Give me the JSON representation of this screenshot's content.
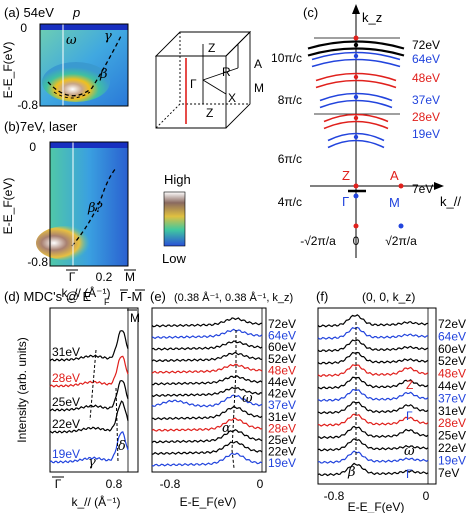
{
  "colors": {
    "red": "#e0201c",
    "blue": "#2244dd",
    "black": "#000000"
  },
  "panel_a": {
    "label": "(a) 54eV",
    "pol": "p",
    "yaxis": "E-E_F(eV)",
    "yticks": [
      "0",
      "-0.8"
    ],
    "labels": {
      "omega": "ω",
      "gamma": "γ",
      "beta": "β"
    }
  },
  "panel_b": {
    "label": "(b)7eV, laser",
    "yaxis": "E-E_F(eV)",
    "yticks": [
      "0",
      "-0.8"
    ],
    "xticks": [
      "Γ",
      "0.2",
      "M"
    ],
    "xlabel": "k_// (Å⁻¹)",
    "annotation": "β?"
  },
  "colorbar": {
    "high": "High",
    "low": "Low"
  },
  "bz": {
    "labels": [
      "Z",
      "Z",
      "R",
      "A",
      "Γ",
      "X",
      "M"
    ]
  },
  "panel_c": {
    "label": "(c)",
    "yaxis": "k_z",
    "xaxis": "k_//",
    "yticks": [
      "10π/c",
      "8π/c",
      "6π/c",
      "4π/c"
    ],
    "xticks": [
      "-√2π/a",
      "0",
      "√2π/a"
    ],
    "points": [
      "Z",
      "A",
      "Γ",
      "M"
    ],
    "energies": [
      {
        "label": "72eV",
        "color": "#000000"
      },
      {
        "label": "64eV",
        "color": "#2244dd"
      },
      {
        "label": "48eV",
        "color": "#e0201c"
      },
      {
        "label": "37eV",
        "color": "#2244dd"
      },
      {
        "label": "28eV",
        "color": "#e0201c"
      },
      {
        "label": "19eV",
        "color": "#2244dd"
      },
      {
        "label": "7eV",
        "color": "#000000"
      }
    ]
  },
  "panel_d": {
    "label": "(d) MDC's @ E",
    "label_sub": "F",
    "direction": "Γ-M",
    "yaxis": "Intensity (arb. units)",
    "xlabel": "k_// (Å⁻¹)",
    "xticks": [
      "Γ",
      "0.8"
    ],
    "mbar": "M",
    "curves": [
      {
        "label": "31eV",
        "color": "#000000"
      },
      {
        "label": "28eV",
        "color": "#e0201c"
      },
      {
        "label": "25eV",
        "color": "#000000"
      },
      {
        "label": "22eV",
        "color": "#000000"
      },
      {
        "label": "19eV",
        "color": "#2244dd"
      }
    ],
    "greek": {
      "gamma": "γ",
      "delta": "δ"
    }
  },
  "panel_e": {
    "label": "(e)",
    "title": "(0.38 Å⁻¹, 0.38 Å⁻¹, k_z)",
    "xlabel": "E-E_F(eV)",
    "xticks": [
      "-0.8",
      "0"
    ],
    "curves": [
      {
        "label": "72eV",
        "color": "#000000"
      },
      {
        "label": "64eV",
        "color": "#2244dd"
      },
      {
        "label": "60eV",
        "color": "#000000"
      },
      {
        "label": "52eV",
        "color": "#000000"
      },
      {
        "label": "48eV",
        "color": "#e0201c"
      },
      {
        "label": "44eV",
        "color": "#000000"
      },
      {
        "label": "42eV",
        "color": "#000000"
      },
      {
        "label": "37eV",
        "color": "#2244dd"
      },
      {
        "label": "31eV",
        "color": "#000000"
      },
      {
        "label": "28eV",
        "color": "#e0201c"
      },
      {
        "label": "25eV",
        "color": "#000000"
      },
      {
        "label": "22eV",
        "color": "#000000"
      },
      {
        "label": "19eV",
        "color": "#2244dd"
      }
    ],
    "greek": {
      "omega": "ω",
      "alpha": "α"
    }
  },
  "panel_f": {
    "label": "(f)",
    "title": "(0, 0, k_z)",
    "xlabel": "E-E_F(eV)",
    "xticks": [
      "-0.8",
      "0"
    ],
    "curves": [
      {
        "label": "72eV",
        "color": "#000000"
      },
      {
        "label": "64eV",
        "color": "#2244dd"
      },
      {
        "label": "60eV",
        "color": "#000000"
      },
      {
        "label": "52eV",
        "color": "#000000"
      },
      {
        "label": "48eV",
        "color": "#e0201c"
      },
      {
        "label": "44eV",
        "color": "#000000"
      },
      {
        "label": "37eV",
        "color": "#2244dd"
      },
      {
        "label": "31eV",
        "color": "#000000"
      },
      {
        "label": "28eV",
        "color": "#e0201c"
      },
      {
        "label": "25eV",
        "color": "#000000"
      },
      {
        "label": "22eV",
        "color": "#000000"
      },
      {
        "label": "19eV",
        "color": "#2244dd"
      },
      {
        "label": "7eV",
        "color": "#000000"
      }
    ],
    "greek": {
      "Z": "Z",
      "Gamma1": "Γ",
      "omega": "ω",
      "beta": "β",
      "Gamma2": "Γ"
    }
  }
}
